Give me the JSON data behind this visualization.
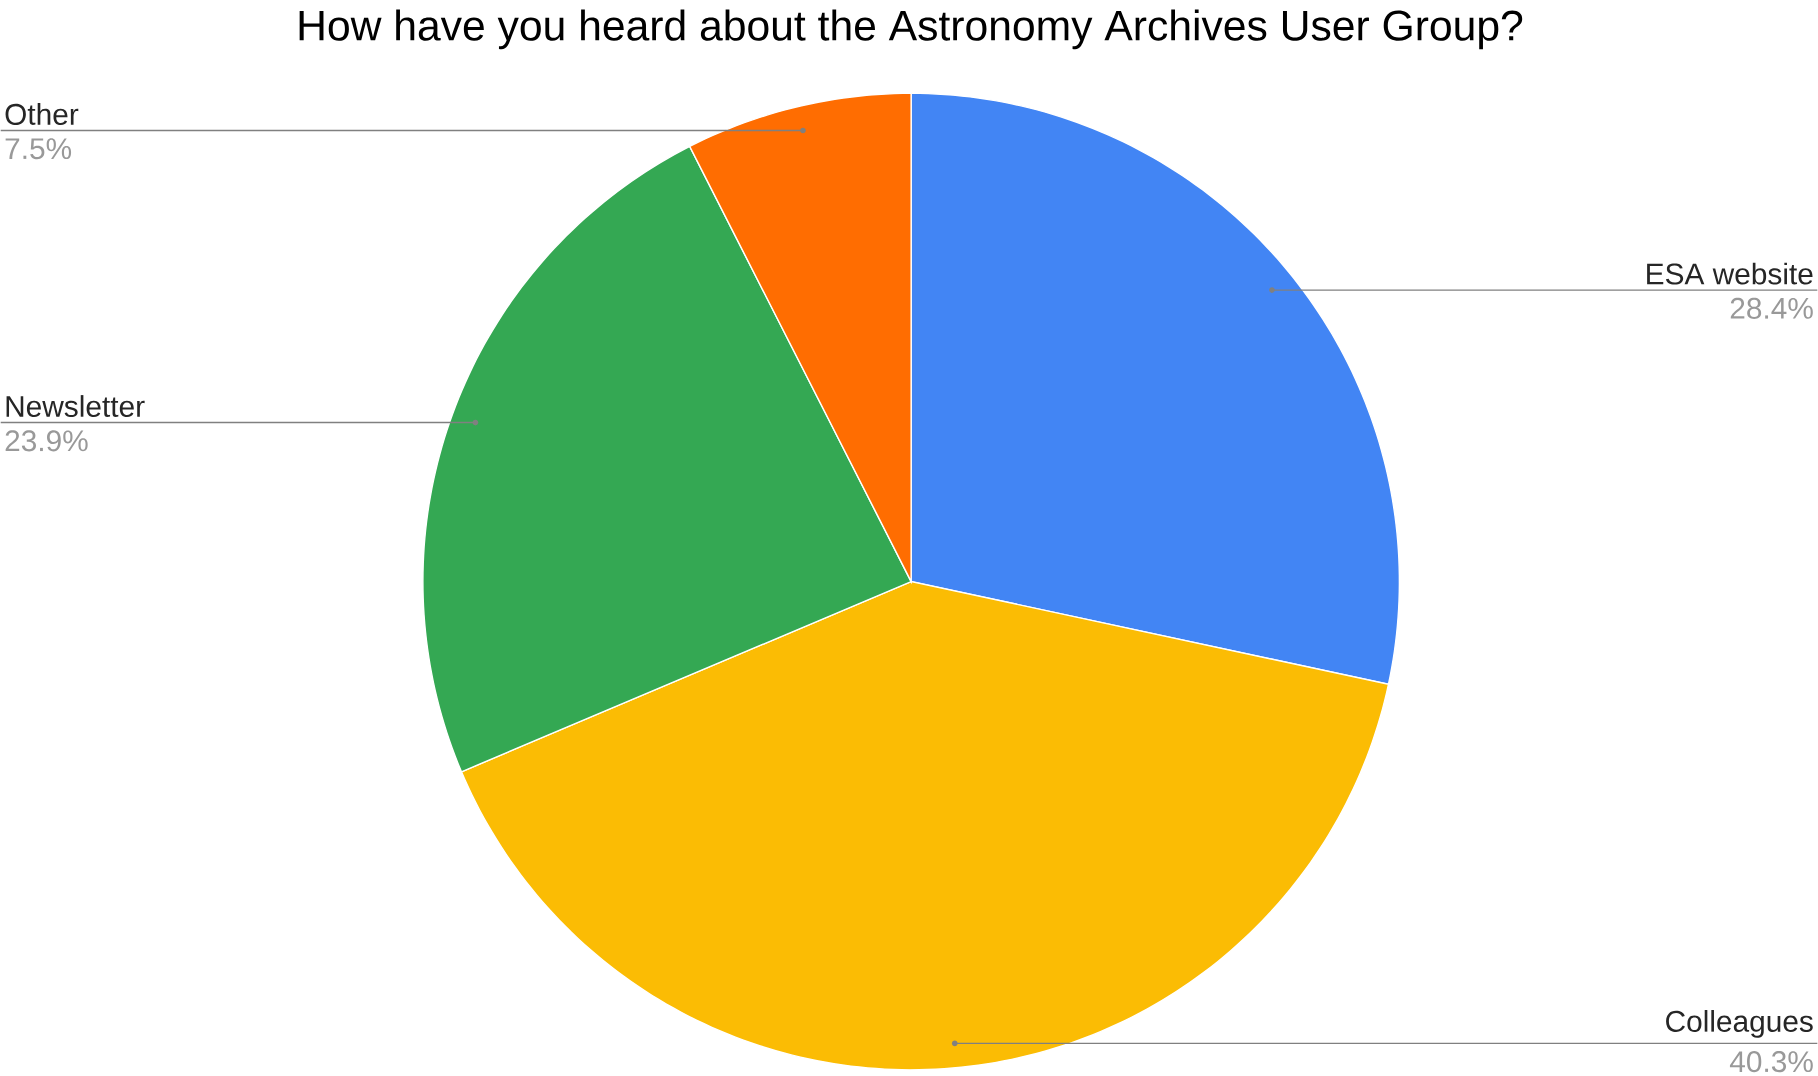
{
  "chart_data": {
    "type": "pie",
    "title": "How have you heard about the Astronomy Archives User Group?",
    "categories": [
      "ESA website",
      "Colleagues",
      "Newsletter",
      "Other"
    ],
    "values": [
      28.4,
      40.3,
      23.9,
      7.5
    ],
    "colors": [
      "#4285f4",
      "#fbbc04",
      "#34a853",
      "#ff6d01"
    ],
    "value_labels": [
      "28.4%",
      "40.3%",
      "23.9%",
      "7.5%"
    ]
  }
}
